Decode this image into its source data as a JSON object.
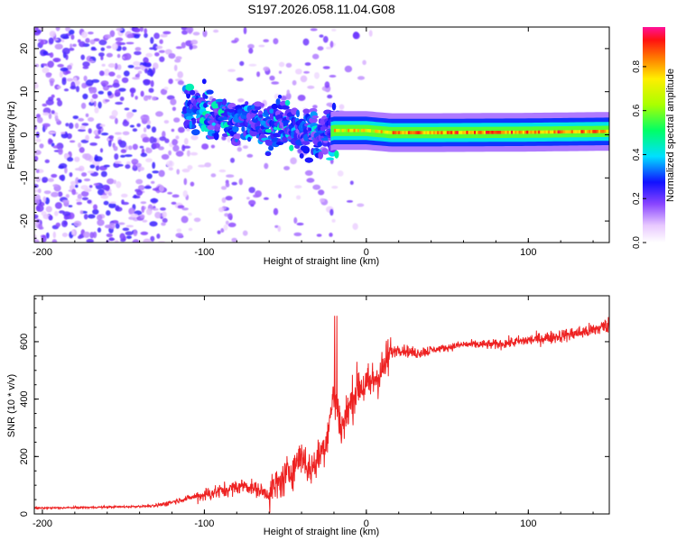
{
  "chart_data": [
    {
      "type": "heatmap",
      "title": "S197.2026.058.11.04.G08",
      "xlabel": "Height of straight line (km)",
      "ylabel": "Frequency (Hz)",
      "xlim": [
        -205,
        150
      ],
      "ylim": [
        -25,
        25
      ],
      "xticks": [
        -200,
        -100,
        0,
        100
      ],
      "yticks": [
        -20,
        -10,
        0,
        10,
        20
      ],
      "tone_band": {
        "description": "coherent carrier band at ~0 Hz",
        "points": [
          [
            -110,
            6
          ],
          [
            -90,
            4
          ],
          [
            -70,
            3
          ],
          [
            -50,
            2
          ],
          [
            -30,
            0
          ],
          [
            -20,
            1
          ],
          [
            0,
            1
          ],
          [
            15,
            0.5
          ],
          [
            40,
            0.5
          ],
          [
            100,
            0.6
          ],
          [
            150,
            0.8
          ]
        ],
        "max_amplitude_from_km": 15
      },
      "colorbar": {
        "label": "Normalized spectral amplitude",
        "ticks": [
          "0.0",
          "0.2",
          "0.4",
          "0.6",
          "0.8"
        ],
        "range": [
          0,
          0.98
        ]
      }
    },
    {
      "type": "line",
      "xlabel": "Height of straight line (km)",
      "ylabel": "SNR (10 * v/v)",
      "xlim": [
        -205,
        150
      ],
      "ylim": [
        0,
        760
      ],
      "xticks": [
        -200,
        -100,
        0,
        100
      ],
      "yticks": [
        0,
        200,
        400,
        600
      ],
      "color": "#ee2222",
      "series": [
        {
          "name": "SNR",
          "x": [
            -205,
            -180,
            -150,
            -130,
            -110,
            -90,
            -75,
            -60,
            -50,
            -45,
            -40,
            -35,
            -30,
            -25,
            -20,
            -15,
            -10,
            -5,
            0,
            5,
            10,
            15,
            20,
            30,
            40,
            60,
            80,
            100,
            120,
            140,
            150
          ],
          "y": [
            20,
            22,
            25,
            28,
            55,
            80,
            100,
            70,
            130,
            160,
            210,
            150,
            190,
            250,
            420,
            300,
            380,
            450,
            440,
            470,
            500,
            560,
            575,
            560,
            570,
            590,
            590,
            605,
            620,
            640,
            660
          ]
        }
      ]
    }
  ]
}
